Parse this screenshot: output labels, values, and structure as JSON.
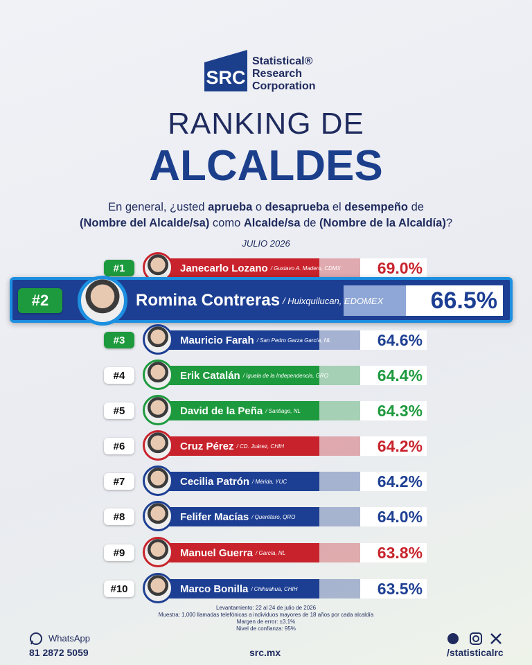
{
  "logo": {
    "abbr": "SRC",
    "line1": "Statistical®",
    "line2": "Research",
    "line3": "Corporation"
  },
  "title": {
    "line1": "RANKING DE",
    "line2": "ALCALDES"
  },
  "question": {
    "line1": [
      {
        "text": "En general, ¿usted ",
        "bold": false
      },
      {
        "text": "aprueba",
        "bold": true
      },
      {
        "text": " o ",
        "bold": false
      },
      {
        "text": "desaprueba",
        "bold": true
      },
      {
        "text": " el ",
        "bold": false
      },
      {
        "text": "desempeño",
        "bold": true
      },
      {
        "text": " de",
        "bold": false
      }
    ],
    "line2": [
      {
        "text": "(Nombre del Alcalde/sa)",
        "bold": true
      },
      {
        "text": " como ",
        "bold": false
      },
      {
        "text": "Alcalde/sa",
        "bold": true
      },
      {
        "text": " de ",
        "bold": false
      },
      {
        "text": "(Nombre de la Alcaldía)",
        "bold": true
      },
      {
        "text": "?",
        "bold": false
      }
    ]
  },
  "date": "JULIO 2026",
  "ranking": {
    "highlight_index": 1,
    "rows": [
      {
        "rank": "#1",
        "name": "Janecarlo Lozano",
        "place": "/ Gustavo A. Madero, CDMX",
        "value": "69.0%",
        "color": "#c8232c"
      },
      {
        "rank": "#2",
        "name": "Romina Contreras",
        "place": "/ Huixquilucan, EDOMEX",
        "value": "66.5%",
        "color": "#1d3f93"
      },
      {
        "rank": "#3",
        "name": "Mauricio Farah",
        "place": "/ San Pedro Garza García, NL",
        "value": "64.6%",
        "color": "#1d3f93"
      },
      {
        "rank": "#4",
        "name": "Erik Catalán",
        "place": "/ Iguala de la Independencia, GRO",
        "value": "64.4%",
        "color": "#1e9a3e"
      },
      {
        "rank": "#5",
        "name": "David de la Peña",
        "place": "/ Santiago, NL",
        "value": "64.3%",
        "color": "#1e9a3e"
      },
      {
        "rank": "#6",
        "name": "Cruz Pérez",
        "place": "/ CD. Juárez, CHIH",
        "value": "64.2%",
        "color": "#c8232c"
      },
      {
        "rank": "#7",
        "name": "Cecilia Patrón",
        "place": "/ Mérida, YUC",
        "value": "64.2%",
        "color": "#1d3f93"
      },
      {
        "rank": "#8",
        "name": "Felifer Macías",
        "place": "/ Querétaro, QRO",
        "value": "64.0%",
        "color": "#1d3f93"
      },
      {
        "rank": "#9",
        "name": "Manuel Guerra",
        "place": "/ García, NL",
        "value": "63.8%",
        "color": "#c8232c"
      },
      {
        "rank": "#10",
        "name": "Marco Bonilla",
        "place": "/ Chihuahua, CHIH",
        "value": "63.5%",
        "color": "#1d3f93"
      }
    ]
  },
  "methodology": [
    "Levantamiento: 22 al 24 de julio de 2026",
    "Muestra: 1,000 llamadas telefónicas a individuos mayores de 18 años por cada alcaldía",
    "Margen de error: ±3.1%",
    "Nivel de confianza: 95%"
  ],
  "footer": {
    "whatsapp_label": "WhatsApp",
    "phone": "81 2872 5059",
    "website": "src.mx",
    "handle": "/statisticalrc"
  }
}
